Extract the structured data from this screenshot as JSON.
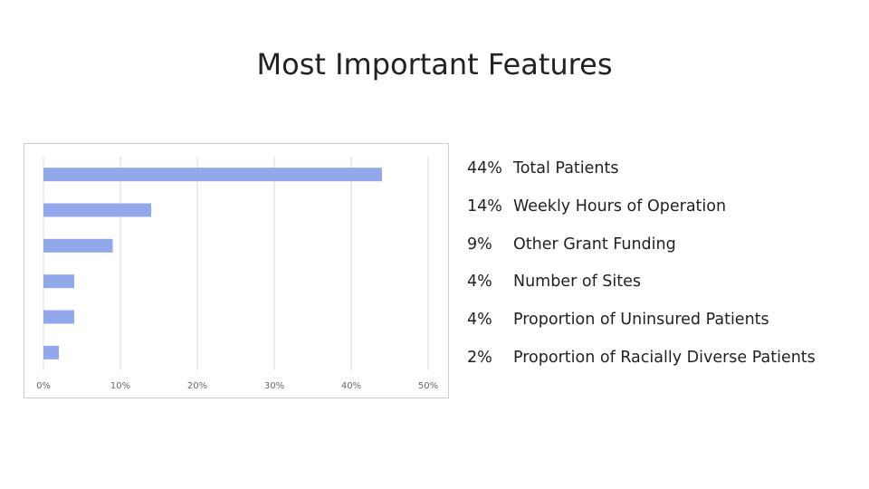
{
  "title": "Most Important Features",
  "colors": {
    "bar": "#92a8ea",
    "grid": "#d9d9d9",
    "tick": "#666666"
  },
  "features": [
    {
      "pct": "44%",
      "label": "Total Patients"
    },
    {
      "pct": "14%",
      "label": "Weekly Hours of Operation"
    },
    {
      "pct": "9%",
      "label": "Other Grant Funding"
    },
    {
      "pct": "4%",
      "label": "Number of Sites"
    },
    {
      "pct": "4%",
      "label": "Proportion of Uninsured Patients"
    },
    {
      "pct": "2%",
      "label": "Proportion of Racially Diverse Patients"
    }
  ],
  "chart_data": {
    "type": "bar",
    "orientation": "horizontal",
    "categories": [
      "Total Patients",
      "Weekly Hours of Operation",
      "Other Grant Funding",
      "Number of Sites",
      "Proportion of Uninsured Patients",
      "Proportion of Racially Diverse Patients"
    ],
    "values": [
      44,
      14,
      9,
      4,
      4,
      2
    ],
    "xlim": [
      0,
      50
    ],
    "xticks": [
      "0%",
      "10%",
      "20%",
      "30%",
      "40%",
      "50%"
    ],
    "grid": true,
    "title": "",
    "xlabel": "",
    "ylabel": ""
  }
}
